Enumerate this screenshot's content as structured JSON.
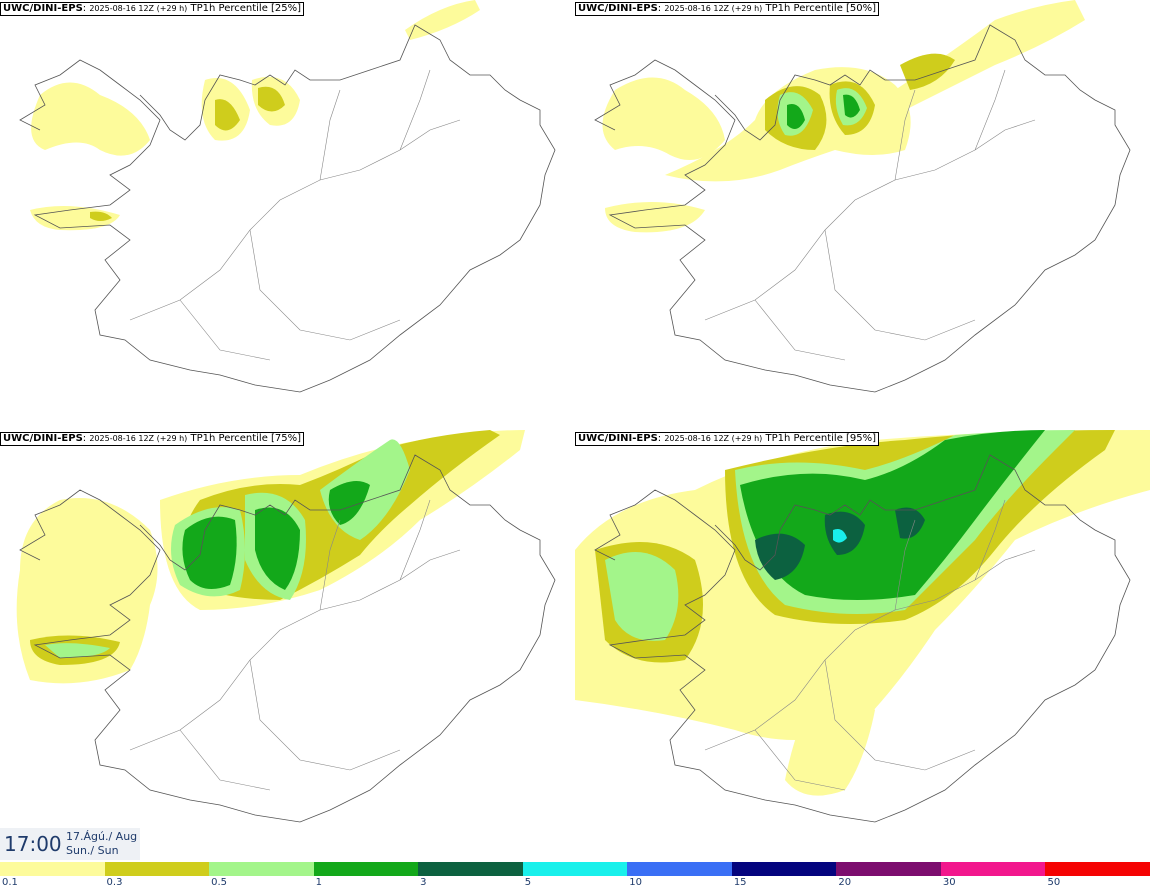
{
  "panels": [
    {
      "source": "UWC/DINI-EPS",
      "run": "2025-08-16 12Z (+29 h)",
      "field": "TP1h Percentile [25%]"
    },
    {
      "source": "UWC/DINI-EPS",
      "run": "2025-08-16 12Z (+29 h)",
      "field": "TP1h Percentile [50%]"
    },
    {
      "source": "UWC/DINI-EPS",
      "run": "2025-08-16 12Z (+29 h)",
      "field": "TP1h Percentile [75%]"
    },
    {
      "source": "UWC/DINI-EPS",
      "run": "2025-08-16 12Z (+29 h)",
      "field": "TP1h Percentile [95%]"
    }
  ],
  "valid_time": {
    "time": "17:00",
    "date_line": "17.Ágú./ Aug",
    "day_line": "Sun./ Sun"
  },
  "legend": {
    "labels": [
      "0.1",
      "0.3",
      "0.5",
      "1",
      "3",
      "5",
      "10",
      "15",
      "20",
      "30",
      "50"
    ],
    "colors": [
      "#fdfb9b",
      "#cfcd1c",
      "#a3f58a",
      "#13a81a",
      "#0c6140",
      "#19f0eb",
      "#3a6ff5",
      "#04047e",
      "#7c0d6e",
      "#f2178d",
      "#f50303"
    ]
  }
}
